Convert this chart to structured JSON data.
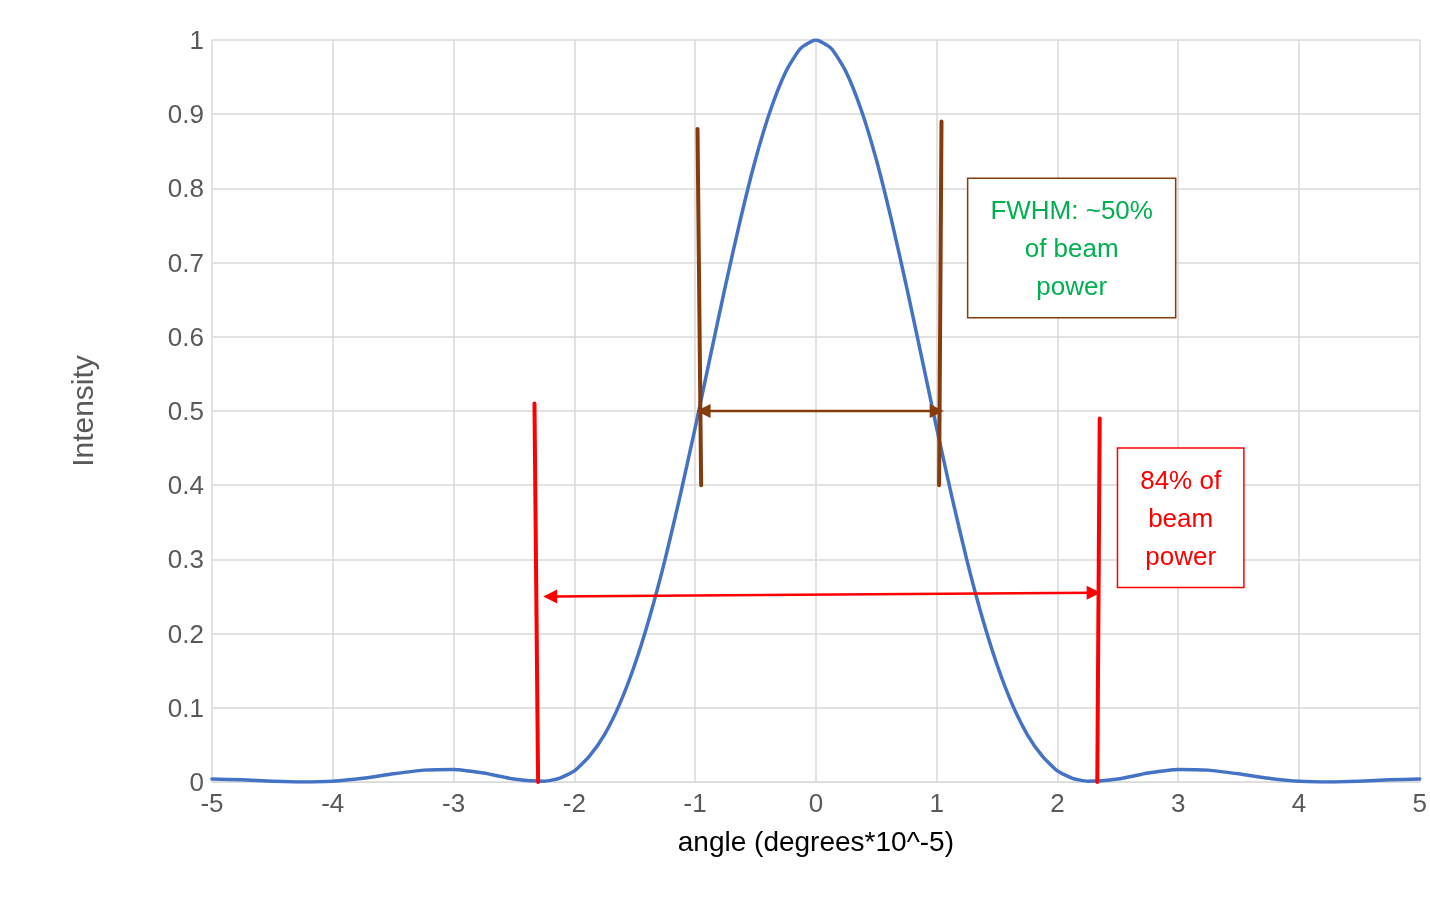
{
  "chart_data": {
    "type": "line",
    "xlabel": "angle (degrees*10^-5)",
    "ylabel": "Intensity",
    "xlim": [
      -5,
      5
    ],
    "xticks": [
      -5,
      -4,
      -3,
      -2,
      -1,
      0,
      1,
      2,
      3,
      4,
      5
    ],
    "ylim": [
      0,
      1
    ],
    "yticks": [
      0,
      0.1,
      0.2,
      0.3,
      0.4,
      0.5,
      0.6,
      0.7,
      0.8,
      0.9,
      1
    ],
    "grid": true,
    "marker": "none",
    "line_style": "solid",
    "x": [
      -5,
      -4.75,
      -4.5,
      -4.25,
      -4,
      -3.75,
      -3.5,
      -3.25,
      -3,
      -2.75,
      -2.5,
      -2.25,
      -2.125,
      -2,
      -1.875,
      -1.75,
      -1.625,
      -1.5,
      -1.375,
      -1.25,
      -1.125,
      -1,
      -0.875,
      -0.75,
      -0.625,
      -0.5,
      -0.375,
      -0.25,
      -0.125,
      0,
      0.125,
      0.25,
      0.375,
      0.5,
      0.625,
      0.75,
      0.875,
      1,
      1.125,
      1.25,
      1.375,
      1.5,
      1.625,
      1.75,
      1.875,
      2,
      2.125,
      2.25,
      2.5,
      2.75,
      3,
      3.25,
      3.5,
      3.75,
      4,
      4.25,
      4.5,
      4.75,
      5
    ],
    "series": [
      {
        "color": "#4472c4",
        "values": [
          0.004,
          0.003,
          0.001,
          0,
          0.001,
          0.005,
          0.011,
          0.016,
          0.017,
          0.012,
          0.004,
          0.001,
          0.005,
          0.015,
          0.035,
          0.064,
          0.105,
          0.158,
          0.223,
          0.299,
          0.385,
          0.477,
          0.573,
          0.668,
          0.758,
          0.839,
          0.906,
          0.957,
          0.989,
          1,
          0.989,
          0.957,
          0.906,
          0.839,
          0.758,
          0.668,
          0.573,
          0.477,
          0.385,
          0.299,
          0.223,
          0.158,
          0.105,
          0.064,
          0.035,
          0.015,
          0.005,
          0.001,
          0.004,
          0.012,
          0.017,
          0.016,
          0.011,
          0.005,
          0.001,
          0,
          0.001,
          0.003,
          0.004
        ]
      },
      {
        "color": "#ff0000",
        "x": [
          -2.33,
          -2.3
        ],
        "values": [
          0.51,
          0
        ]
      },
      {
        "color": "#ff0000",
        "x": [
          2.35,
          2.33
        ],
        "values": [
          0.49,
          0
        ]
      },
      {
        "color": "#843c0c",
        "x": [
          -0.98,
          -0.95
        ],
        "values": [
          0.88,
          0.4
        ]
      },
      {
        "color": "#843c0c",
        "x": [
          1.04,
          1.02
        ],
        "values": [
          0.89,
          0.4
        ]
      },
      {
        "color": "#843c0c",
        "marker": "triangle",
        "x": [
          -0.93,
          1.0
        ],
        "values": [
          0.5,
          0.5
        ]
      },
      {
        "color": "#ff0000",
        "marker": "triangle",
        "x": [
          -2.2,
          2.3
        ],
        "values": [
          0.25,
          0.255
        ]
      }
    ],
    "annotations": [
      "FWHM: ~50%\nof beam\npower",
      "84% of\nbeam\npower"
    ]
  }
}
